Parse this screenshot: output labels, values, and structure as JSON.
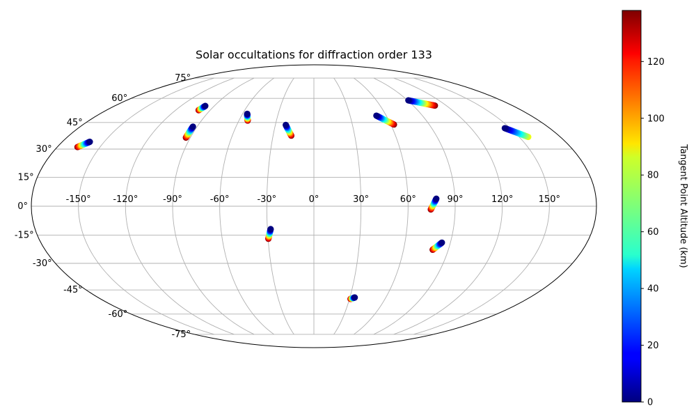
{
  "chart_data": {
    "type": "scatter",
    "projection": "mollweide",
    "title": "Solar occultations for diffraction order 133",
    "xlabel": "",
    "ylabel": "",
    "grid": true,
    "lon_ticks": [
      -150,
      -120,
      -90,
      -60,
      -30,
      0,
      30,
      60,
      90,
      120,
      150
    ],
    "lon_tick_labels": [
      "-150°",
      "-120°",
      "-90°",
      "-60°",
      "-30°",
      "0°",
      "30°",
      "60°",
      "90°",
      "120°",
      "150°"
    ],
    "lat_ticks": [
      75,
      60,
      45,
      30,
      15,
      0,
      -15,
      -30,
      -45,
      -60,
      -75
    ],
    "lat_tick_labels": [
      "75°",
      "60°",
      "45°",
      "30°",
      "15°",
      "0°",
      "-15°",
      "-30°",
      "-45°",
      "-60°",
      "-75°"
    ],
    "colorbar": {
      "label": "Tangent Point Altitude (km)",
      "colormap": "jet",
      "min": 0,
      "max": 138,
      "ticks": [
        0,
        20,
        40,
        60,
        80,
        100,
        120
      ],
      "tick_labels": [
        "0",
        "20",
        "40",
        "60",
        "80",
        "100",
        "120"
      ]
    },
    "series": [
      {
        "start_alt": 0,
        "end_alt": 138,
        "start": [
          -160.3,
          34.0
        ],
        "end": [
          -165.8,
          31.1
        ]
      },
      {
        "start_alt": 0,
        "end_alt": 138,
        "start": [
          -98.1,
          55.1
        ],
        "end": [
          -100.0,
          52.4
        ]
      },
      {
        "start_alt": 0,
        "end_alt": 138,
        "start": [
          -93.2,
          42.6
        ],
        "end": [
          -93.2,
          36.3
        ]
      },
      {
        "start_alt": 0,
        "end_alt": 138,
        "start": [
          -56.1,
          50.2
        ],
        "end": [
          -53.0,
          46.1
        ]
      },
      {
        "start_alt": 0,
        "end_alt": 138,
        "start": [
          -21.9,
          43.6
        ],
        "end": [
          -16.6,
          37.4
        ]
      },
      {
        "start_alt": 0,
        "end_alt": 138,
        "start": [
          51.8,
          49.1
        ],
        "end": [
          62.5,
          43.8
        ]
      },
      {
        "start_alt": 0,
        "end_alt": 138,
        "start": [
          90.7,
          58.7
        ],
        "end": [
          109.7,
          55.3
        ]
      },
      {
        "start_alt": 0,
        "end_alt": 85,
        "start": [
          145.8,
          41.7
        ],
        "end": [
          156.6,
          36.7
        ]
      },
      {
        "start_alt": 0,
        "end_alt": 138,
        "start": [
          78.1,
          3.9
        ],
        "end": [
          74.5,
          -1.7
        ]
      },
      {
        "start_alt": 0,
        "end_alt": 138,
        "start": [
          84.4,
          -18.9
        ],
        "end": [
          79.5,
          -22.7
        ]
      },
      {
        "start_alt": 0,
        "end_alt": 138,
        "start": [
          -27.9,
          -11.8
        ],
        "end": [
          -29.8,
          -16.9
        ]
      },
      {
        "start_alt": 0,
        "end_alt": 138,
        "start": [
          34.1,
          -49.5
        ],
        "end": [
          30.9,
          -50.4
        ]
      }
    ]
  }
}
